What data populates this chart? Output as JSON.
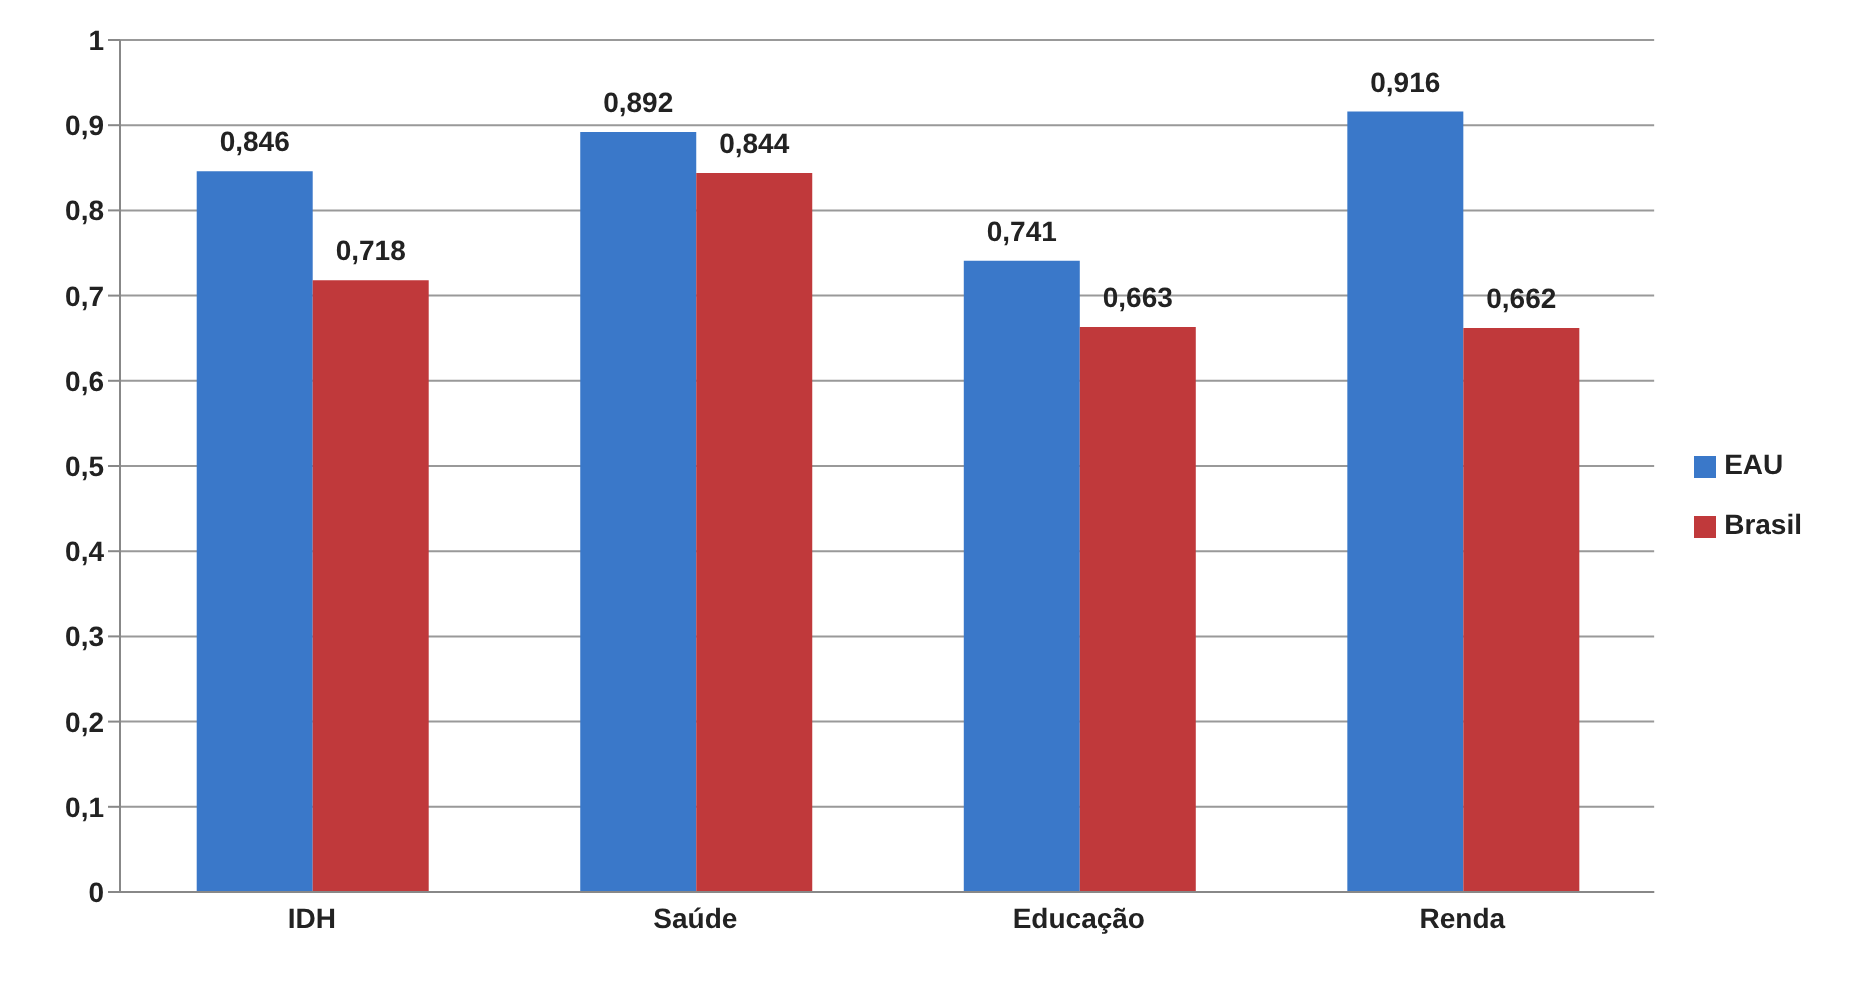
{
  "chart_data": {
    "type": "bar",
    "categories": [
      "IDH",
      "Saúde",
      "Educação",
      "Renda"
    ],
    "series": [
      {
        "name": "EAU",
        "color": "#3a78c9",
        "values": [
          0.846,
          0.892,
          0.741,
          0.916
        ],
        "value_labels": [
          "0,846",
          "0,892",
          "0,741",
          "0,916"
        ]
      },
      {
        "name": "Brasil",
        "color": "#c0393b",
        "values": [
          0.718,
          0.844,
          0.663,
          0.662
        ],
        "value_labels": [
          "0,718",
          "0,844",
          "0,663",
          "0,662"
        ]
      }
    ],
    "ylim": [
      0,
      1
    ],
    "yticks": [
      {
        "value": 0,
        "label": "0"
      },
      {
        "value": 0.1,
        "label": "0,1"
      },
      {
        "value": 0.2,
        "label": "0,2"
      },
      {
        "value": 0.3,
        "label": "0,3"
      },
      {
        "value": 0.4,
        "label": "0,4"
      },
      {
        "value": 0.5,
        "label": "0,5"
      },
      {
        "value": 0.6,
        "label": "0,6"
      },
      {
        "value": 0.7,
        "label": "0,7"
      },
      {
        "value": 0.8,
        "label": "0,8"
      },
      {
        "value": 0.9,
        "label": "0,9"
      },
      {
        "value": 1,
        "label": "1"
      }
    ],
    "grid": "y",
    "legend": "right"
  }
}
